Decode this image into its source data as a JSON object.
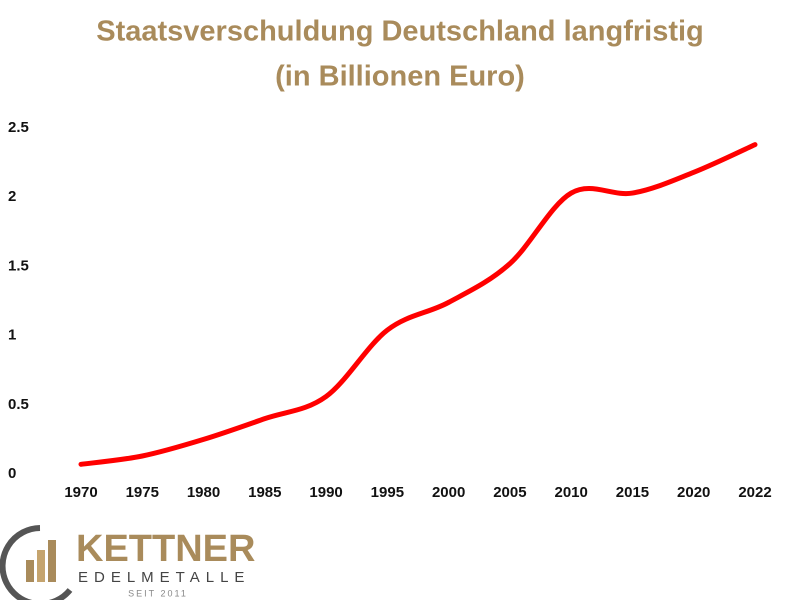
{
  "chart_data": {
    "type": "line",
    "title": "Staatsverschuldung Deutschland langfristig",
    "subtitle": "(in Billionen Euro)",
    "categories": [
      "1970",
      "1975",
      "1980",
      "1985",
      "1990",
      "1995",
      "2000",
      "2005",
      "2010",
      "2015",
      "2020",
      "2022"
    ],
    "series": [
      {
        "color": "#ff0000",
        "values": [
          0.07,
          0.13,
          0.25,
          0.4,
          0.56,
          1.04,
          1.24,
          1.52,
          2.03,
          2.03,
          2.18,
          2.38
        ]
      }
    ],
    "ylim": [
      0,
      2.5
    ],
    "yticks": [
      0,
      0.5,
      1,
      1.5,
      2,
      2.5
    ],
    "grid": false
  },
  "logo": {
    "name": "KETTNER",
    "tagline": "EDELMETALLE",
    "since": "SEIT 2011"
  }
}
